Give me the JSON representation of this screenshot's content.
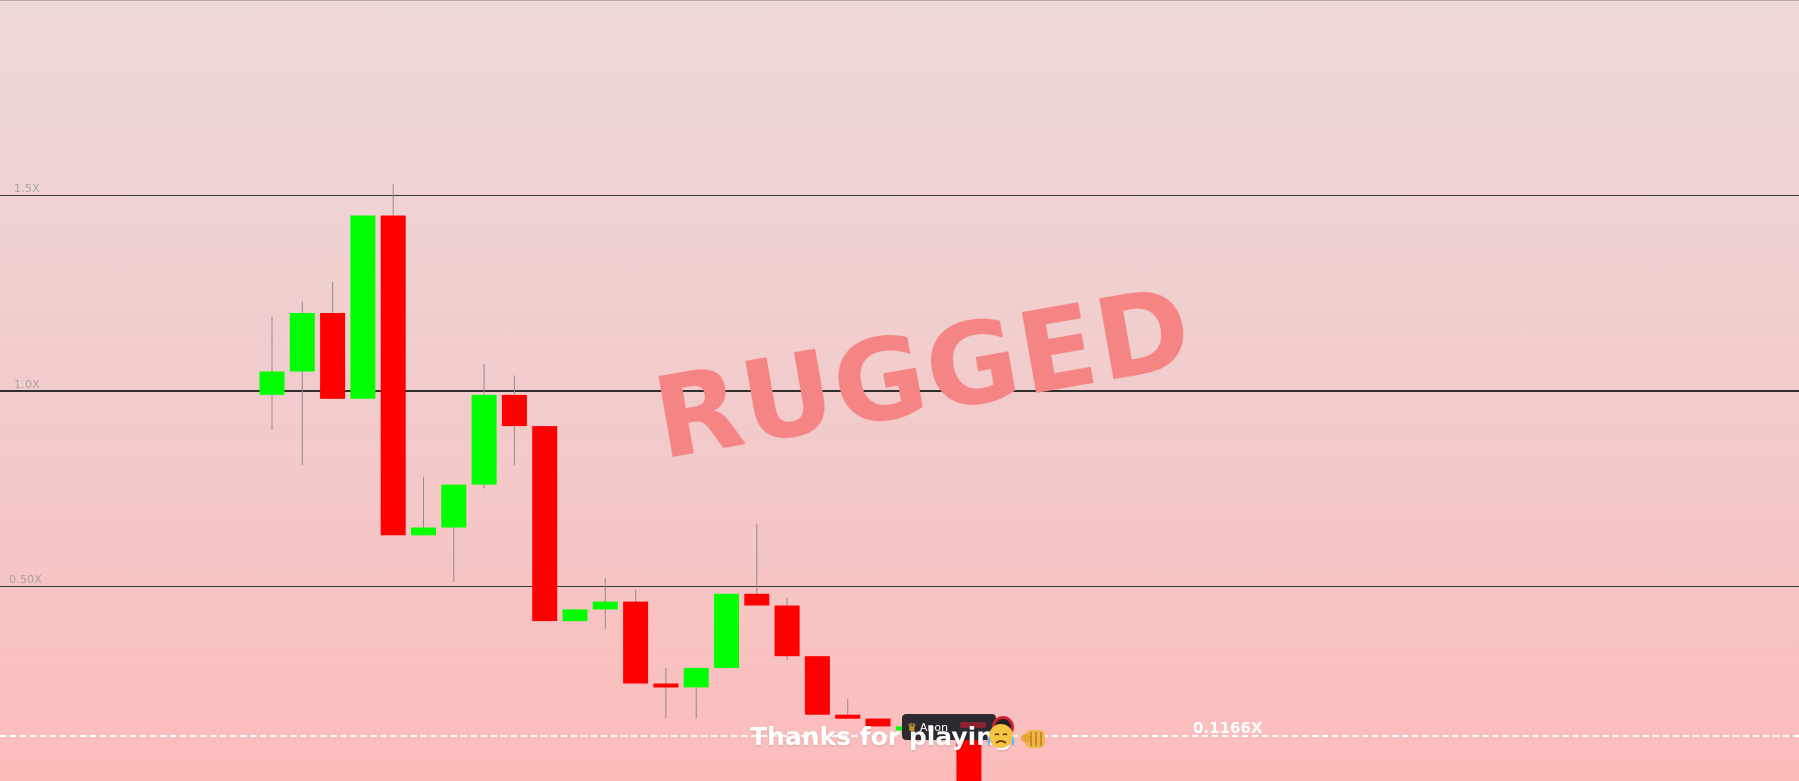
{
  "game": {
    "status_stamp": "RUGGED",
    "current_multiplier": "0.1166X",
    "end_message": "Thanks for playing",
    "player_tag": {
      "name": "Anon",
      "icon": "crown-icon"
    },
    "emojis": [
      "crying-face-icon",
      "fist-icon"
    ]
  },
  "colors": {
    "up": "#00ff00",
    "down": "#ff0000",
    "stamp": "#f58585"
  },
  "chart_data": {
    "type": "candlestick",
    "y_axis_labels": [
      "1.5X",
      "1.0X",
      "0.50X"
    ],
    "reference_multiplier": 1.0,
    "candles": [
      {
        "open": 0.99,
        "close": 1.05,
        "high": 1.19,
        "low": 0.9
      },
      {
        "open": 1.05,
        "close": 1.2,
        "high": 1.23,
        "low": 0.81
      },
      {
        "open": 1.2,
        "close": 0.98,
        "high": 1.28,
        "low": 0.98
      },
      {
        "open": 0.98,
        "close": 1.45,
        "high": 1.45,
        "low": 0.98
      },
      {
        "open": 1.45,
        "close": 0.63,
        "high": 1.53,
        "low": 0.63
      },
      {
        "open": 0.63,
        "close": 0.65,
        "high": 0.78,
        "low": 0.63
      },
      {
        "open": 0.65,
        "close": 0.76,
        "high": 0.76,
        "low": 0.51
      },
      {
        "open": 0.76,
        "close": 0.99,
        "high": 1.07,
        "low": 0.75
      },
      {
        "open": 0.99,
        "close": 0.91,
        "high": 1.04,
        "low": 0.81
      },
      {
        "open": 0.91,
        "close": 0.41,
        "high": 0.91,
        "low": 0.41
      },
      {
        "open": 0.41,
        "close": 0.44,
        "high": 0.44,
        "low": 0.41
      },
      {
        "open": 0.44,
        "close": 0.46,
        "high": 0.52,
        "low": 0.39
      },
      {
        "open": 0.46,
        "close": 0.25,
        "high": 0.49,
        "low": 0.25
      },
      {
        "open": 0.25,
        "close": 0.24,
        "high": 0.29,
        "low": 0.16
      },
      {
        "open": 0.24,
        "close": 0.29,
        "high": 0.29,
        "low": 0.16
      },
      {
        "open": 0.29,
        "close": 0.48,
        "high": 0.48,
        "low": 0.29
      },
      {
        "open": 0.48,
        "close": 0.45,
        "high": 0.66,
        "low": 0.45
      },
      {
        "open": 0.45,
        "close": 0.32,
        "high": 0.47,
        "low": 0.31
      },
      {
        "open": 0.32,
        "close": 0.17,
        "high": 0.32,
        "low": 0.17
      },
      {
        "open": 0.17,
        "close": 0.16,
        "high": 0.21,
        "low": 0.16
      },
      {
        "open": 0.16,
        "close": 0.14,
        "high": 0.16,
        "low": 0.14
      },
      {
        "open": 0.14,
        "close": 0.14,
        "high": 0.14,
        "low": 0.14
      },
      {
        "open": 0.14,
        "close": 0.14,
        "high": 0.14,
        "low": 0.14
      },
      {
        "open": 0.14,
        "close": 0.0,
        "high": 0.14,
        "low": 0.0
      }
    ]
  }
}
